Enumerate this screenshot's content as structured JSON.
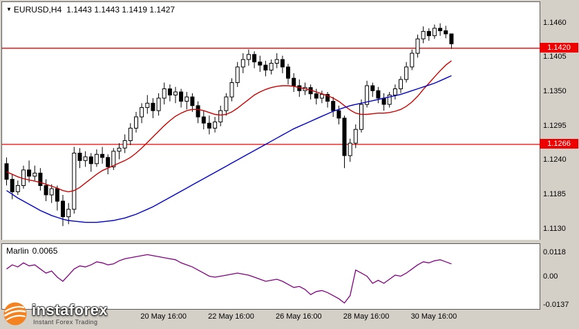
{
  "header": {
    "symbol_period": "EURUSD,H4",
    "ohlc": "1.1443 1.1443 1.1419 1.1427"
  },
  "icons": {
    "symbol_dropdown": "▼"
  },
  "indicator_label": {
    "name": "Marlin",
    "value": "0.0065"
  },
  "logo": {
    "brand": "instaforex",
    "tagline": "Instant Forex Trading"
  },
  "colors": {
    "bull": "#ffffff",
    "bear": "#000000",
    "wick": "#000000",
    "level": "#ef0000",
    "ma_fast": "#cc0000",
    "ma_slow": "#0000cc",
    "marlin": "#800080",
    "frame": "#d4d0c8",
    "plot_bg": "#ffffff"
  },
  "chart_data": {
    "type": "candlestick",
    "symbol": "EURUSD",
    "timeframe": "H4",
    "title": "EURUSD,H4 1.1443 1.1443 1.1419 1.1427",
    "grid": false,
    "y_axis": {
      "range": [
        1.1113,
        1.1494
      ],
      "ticks": [
        {
          "label": "1.1460",
          "value": 1.146
        },
        {
          "label": "1.1405",
          "value": 1.1405
        },
        {
          "label": "1.1350",
          "value": 1.135
        },
        {
          "label": "1.1295",
          "value": 1.1295
        },
        {
          "label": "1.1240",
          "value": 1.124
        },
        {
          "label": "1.1185",
          "value": 1.1185
        },
        {
          "label": "1.1130",
          "value": 1.113
        }
      ]
    },
    "levels": [
      {
        "label": "1.1420",
        "value": 1.142
      },
      {
        "label": "1.1266",
        "value": 1.1266
      }
    ],
    "x_axis": {
      "labels": [
        {
          "label": "20 May 16:00",
          "index": 28
        },
        {
          "label": "22 May 16:00",
          "index": 40
        },
        {
          "label": "26 May 16:00",
          "index": 52
        },
        {
          "label": "28 May 16:00",
          "index": 64
        },
        {
          "label": "30 May 16:00",
          "index": 76
        }
      ]
    },
    "last_candle": {
      "open": 1.1443,
      "high": 1.1443,
      "low": 1.1419,
      "close": 1.1427
    },
    "candles": [
      [
        1.1235,
        1.1245,
        1.12,
        1.121
      ],
      [
        1.121,
        1.1218,
        1.1178,
        1.119
      ],
      [
        1.119,
        1.1208,
        1.1185,
        1.12
      ],
      [
        1.12,
        1.1232,
        1.1195,
        1.1225
      ],
      [
        1.1225,
        1.124,
        1.1205,
        1.1215
      ],
      [
        1.1215,
        1.1232,
        1.1208,
        1.122
      ],
      [
        1.122,
        1.1228,
        1.1192,
        1.12
      ],
      [
        1.12,
        1.121,
        1.1175,
        1.1185
      ],
      [
        1.1185,
        1.1202,
        1.1172,
        1.1195
      ],
      [
        1.1195,
        1.12,
        1.116,
        1.1175
      ],
      [
        1.1175,
        1.1185,
        1.1135,
        1.115
      ],
      [
        1.115,
        1.1172,
        1.1138,
        1.1162
      ],
      [
        1.1162,
        1.1262,
        1.1155,
        1.1252
      ],
      [
        1.1252,
        1.126,
        1.1228,
        1.124
      ],
      [
        1.124,
        1.1255,
        1.123,
        1.1246
      ],
      [
        1.1246,
        1.1252,
        1.1222,
        1.1235
      ],
      [
        1.1235,
        1.1258,
        1.123,
        1.125
      ],
      [
        1.125,
        1.1262,
        1.1235,
        1.1245
      ],
      [
        1.1245,
        1.125,
        1.1218,
        1.123
      ],
      [
        1.123,
        1.126,
        1.1225,
        1.1255
      ],
      [
        1.1255,
        1.1268,
        1.1242,
        1.126
      ],
      [
        1.126,
        1.1282,
        1.1252,
        1.1272
      ],
      [
        1.1272,
        1.13,
        1.1265,
        1.1292
      ],
      [
        1.1292,
        1.1318,
        1.1285,
        1.131
      ],
      [
        1.131,
        1.1332,
        1.13,
        1.1325
      ],
      [
        1.1325,
        1.1345,
        1.1315,
        1.1332
      ],
      [
        1.1332,
        1.134,
        1.1308,
        1.132
      ],
      [
        1.132,
        1.1348,
        1.1312,
        1.134
      ],
      [
        1.134,
        1.1365,
        1.133,
        1.1355
      ],
      [
        1.1355,
        1.1362,
        1.1335,
        1.1345
      ],
      [
        1.1345,
        1.1358,
        1.1332,
        1.135
      ],
      [
        1.135,
        1.1355,
        1.1325,
        1.1335
      ],
      [
        1.1335,
        1.135,
        1.1322,
        1.1342
      ],
      [
        1.1342,
        1.1348,
        1.1318,
        1.1328
      ],
      [
        1.1328,
        1.1335,
        1.13,
        1.131
      ],
      [
        1.131,
        1.132,
        1.129,
        1.13
      ],
      [
        1.13,
        1.1312,
        1.1282,
        1.1292
      ],
      [
        1.1292,
        1.131,
        1.1285,
        1.1302
      ],
      [
        1.1302,
        1.1328,
        1.1295,
        1.132
      ],
      [
        1.132,
        1.1348,
        1.1312,
        1.1342
      ],
      [
        1.1342,
        1.1372,
        1.1335,
        1.1365
      ],
      [
        1.1365,
        1.1398,
        1.1358,
        1.139
      ],
      [
        1.139,
        1.1412,
        1.138,
        1.1402
      ],
      [
        1.1402,
        1.1418,
        1.1392,
        1.141
      ],
      [
        1.141,
        1.1415,
        1.1388,
        1.1398
      ],
      [
        1.1398,
        1.1408,
        1.1382,
        1.1393
      ],
      [
        1.1393,
        1.14,
        1.1375,
        1.1385
      ],
      [
        1.1385,
        1.1402,
        1.1378,
        1.1396
      ],
      [
        1.1396,
        1.1412,
        1.1388,
        1.1402
      ],
      [
        1.1402,
        1.1408,
        1.138,
        1.139
      ],
      [
        1.139,
        1.1395,
        1.1362,
        1.1372
      ],
      [
        1.1372,
        1.138,
        1.135,
        1.136
      ],
      [
        1.136,
        1.137,
        1.1342,
        1.1352
      ],
      [
        1.1352,
        1.1365,
        1.1345,
        1.1357
      ],
      [
        1.1357,
        1.1362,
        1.1338,
        1.1347
      ],
      [
        1.1347,
        1.1355,
        1.133,
        1.134
      ],
      [
        1.134,
        1.1352,
        1.1332,
        1.1346
      ],
      [
        1.1346,
        1.135,
        1.1325,
        1.1335
      ],
      [
        1.1335,
        1.1342,
        1.131,
        1.132
      ],
      [
        1.132,
        1.1328,
        1.1298,
        1.1308
      ],
      [
        1.1308,
        1.1312,
        1.1228,
        1.1248
      ],
      [
        1.1248,
        1.1275,
        1.1238,
        1.1268
      ],
      [
        1.1268,
        1.1298,
        1.126,
        1.129
      ],
      [
        1.129,
        1.1338,
        1.1285,
        1.133
      ],
      [
        1.133,
        1.1368,
        1.1325,
        1.136
      ],
      [
        1.136,
        1.1365,
        1.1342,
        1.1352
      ],
      [
        1.1352,
        1.1358,
        1.1332,
        1.134
      ],
      [
        1.134,
        1.1348,
        1.132,
        1.133
      ],
      [
        1.133,
        1.135,
        1.1325,
        1.1345
      ],
      [
        1.1345,
        1.1362,
        1.1338,
        1.1355
      ],
      [
        1.1355,
        1.1375,
        1.1348,
        1.137
      ],
      [
        1.137,
        1.1398,
        1.1365,
        1.139
      ],
      [
        1.139,
        1.1418,
        1.1385,
        1.1412
      ],
      [
        1.1412,
        1.1442,
        1.1405,
        1.1435
      ],
      [
        1.1435,
        1.1455,
        1.1428,
        1.1447
      ],
      [
        1.1447,
        1.1452,
        1.1432,
        1.144
      ],
      [
        1.144,
        1.1458,
        1.1435,
        1.1452
      ],
      [
        1.1452,
        1.146,
        1.144,
        1.1448
      ],
      [
        1.1448,
        1.1456,
        1.1436,
        1.1443
      ],
      [
        1.1443,
        1.1443,
        1.1419,
        1.1427
      ]
    ],
    "overlays": [
      {
        "name": "ma-fast",
        "color": "#cc0000",
        "values": [
          1.1222,
          1.1218,
          1.1214,
          1.1211,
          1.1209,
          1.1207,
          1.1205,
          1.1202,
          1.1199,
          1.1196,
          1.1192,
          1.119,
          1.1192,
          1.1197,
          1.1204,
          1.1211,
          1.1218,
          1.1224,
          1.1228,
          1.1232,
          1.1236,
          1.124,
          1.1245,
          1.1252,
          1.126,
          1.1269,
          1.1278,
          1.1287,
          1.1296,
          1.1304,
          1.1311,
          1.1316,
          1.132,
          1.1322,
          1.1322,
          1.132,
          1.1317,
          1.1314,
          1.1313,
          1.1314,
          1.1318,
          1.1324,
          1.1331,
          1.1338,
          1.1345,
          1.135,
          1.1354,
          1.1357,
          1.1359,
          1.136,
          1.136,
          1.1359,
          1.1357,
          1.1355,
          1.1353,
          1.135,
          1.1347,
          1.1344,
          1.134,
          1.1335,
          1.1328,
          1.1321,
          1.1316,
          1.1314,
          1.1314,
          1.1315,
          1.1316,
          1.1316,
          1.1317,
          1.1319,
          1.1322,
          1.1327,
          1.1334,
          1.1343,
          1.1354,
          1.1364,
          1.1374,
          1.1384,
          1.1393,
          1.14
        ]
      },
      {
        "name": "ma-slow",
        "color": "#0000cc",
        "values": [
          1.1192,
          1.1186,
          1.118,
          1.1175,
          1.117,
          1.1165,
          1.116,
          1.1156,
          1.1152,
          1.1149,
          1.1146,
          1.1144,
          1.1143,
          1.1142,
          1.1141,
          1.1141,
          1.1141,
          1.1142,
          1.1143,
          1.1144,
          1.1146,
          1.1148,
          1.1151,
          1.1154,
          1.1158,
          1.1162,
          1.1166,
          1.1171,
          1.1176,
          1.1181,
          1.1186,
          1.1191,
          1.1196,
          1.1201,
          1.1206,
          1.1211,
          1.1216,
          1.1221,
          1.1226,
          1.1231,
          1.1236,
          1.1241,
          1.1246,
          1.1251,
          1.1256,
          1.1261,
          1.1266,
          1.1271,
          1.1276,
          1.1281,
          1.1286,
          1.1291,
          1.1295,
          1.1299,
          1.1303,
          1.1307,
          1.1311,
          1.1315,
          1.1319,
          1.1322,
          1.1325,
          1.1328,
          1.133,
          1.1332,
          1.1334,
          1.1336,
          1.1338,
          1.134,
          1.1342,
          1.1344,
          1.1346,
          1.1349,
          1.1352,
          1.1355,
          1.1358,
          1.1361,
          1.1364,
          1.1368,
          1.1372,
          1.1376
        ]
      }
    ],
    "subwindow": {
      "name": "Marlin",
      "current_value": 0.0065,
      "color": "#800080",
      "range": [
        -0.0155,
        0.0162
      ],
      "ticks": [
        {
          "label": "0.0118",
          "value": 0.0118
        },
        {
          "label": "0.00",
          "value": 0.0
        },
        {
          "label": "-0.0137",
          "value": -0.0137
        }
      ],
      "values": [
        0.004,
        0.006,
        0.005,
        0.007,
        0.0055,
        0.006,
        0.004,
        0.002,
        0.003,
        0.0,
        -0.002,
        0.001,
        0.004,
        0.0055,
        0.005,
        0.006,
        0.0075,
        0.007,
        0.006,
        0.0065,
        0.008,
        0.009,
        0.0095,
        0.01,
        0.0105,
        0.011,
        0.0105,
        0.01,
        0.0095,
        0.009,
        0.0085,
        0.007,
        0.006,
        0.005,
        0.0035,
        0.002,
        0.0005,
        0.0,
        0.0005,
        0.001,
        0.0015,
        0.002,
        0.0015,
        0.001,
        0.0,
        -0.001,
        -0.002,
        -0.0015,
        -0.001,
        -0.002,
        -0.0035,
        -0.005,
        -0.0045,
        -0.006,
        -0.0085,
        -0.007,
        -0.0065,
        -0.0075,
        -0.009,
        -0.0105,
        -0.0126,
        -0.009,
        0.0035,
        0.002,
        0.0005,
        -0.003,
        -0.0015,
        -0.003,
        -0.001,
        0.001,
        0.0005,
        0.002,
        0.004,
        0.006,
        0.0075,
        0.007,
        0.008,
        0.0085,
        0.0075,
        0.0065
      ]
    }
  }
}
